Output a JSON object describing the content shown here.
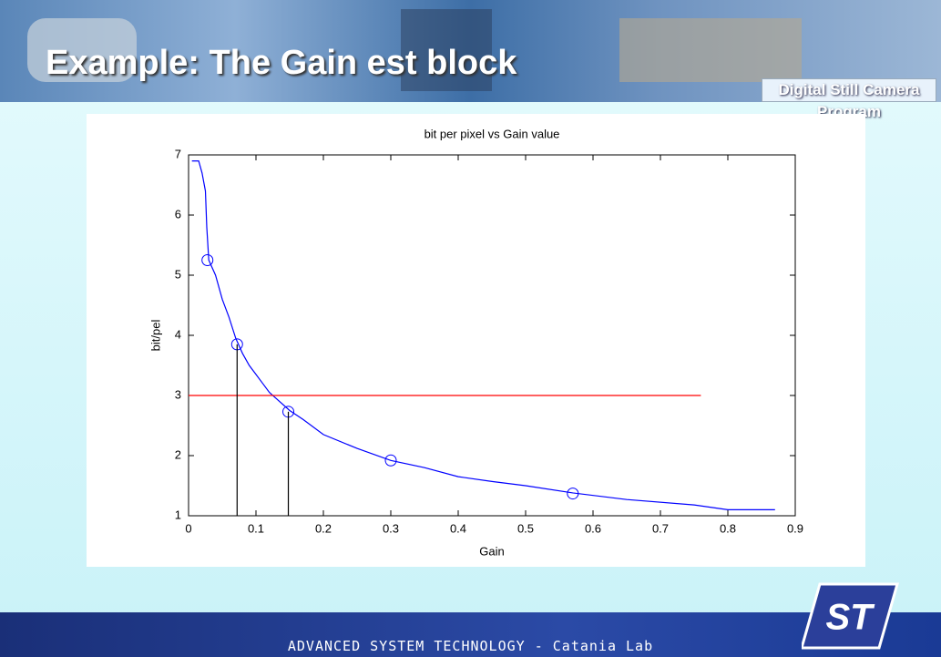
{
  "header": {
    "title": "Example: The Gain est block",
    "program": "Digital Still Camera Program"
  },
  "footer": {
    "text": "ADVANCED SYSTEM TECHNOLOGY - Catania Lab"
  },
  "chart_data": {
    "type": "line",
    "title": "bit per pixel vs Gain value",
    "x_label": "Gain",
    "y_label": "bit/pel",
    "xlim": [
      0,
      0.9
    ],
    "ylim": [
      1,
      7
    ],
    "xticks": [
      0,
      0.1,
      0.2,
      0.3,
      0.4,
      0.5,
      0.6,
      0.7,
      0.8,
      0.9
    ],
    "yticks": [
      1,
      2,
      3,
      4,
      5,
      6,
      7
    ],
    "series": [
      {
        "color": "#0000ff",
        "marker": "none",
        "x": [
          0.005,
          0.015,
          0.02,
          0.025,
          0.027,
          0.03,
          0.04,
          0.05,
          0.06,
          0.07,
          0.08,
          0.09,
          0.1,
          0.11,
          0.12,
          0.13,
          0.15,
          0.17,
          0.2,
          0.25,
          0.3,
          0.35,
          0.4,
          0.45,
          0.5,
          0.57,
          0.65,
          0.75,
          0.8,
          0.87
        ],
        "values": [
          6.9,
          6.9,
          6.7,
          6.4,
          5.8,
          5.25,
          5.0,
          4.6,
          4.3,
          3.95,
          3.7,
          3.5,
          3.35,
          3.2,
          3.05,
          2.95,
          2.75,
          2.6,
          2.35,
          2.12,
          1.92,
          1.8,
          1.65,
          1.57,
          1.5,
          1.38,
          1.27,
          1.18,
          1.1,
          1.1
        ]
      },
      {
        "color": "#0000ff",
        "marker": "circle",
        "x": [
          0.028,
          0.072,
          0.148,
          0.3,
          0.57
        ],
        "values": [
          5.25,
          3.85,
          2.73,
          1.92,
          1.37
        ]
      },
      {
        "color": "#ff0000",
        "marker": "none",
        "x": [
          0,
          0.76
        ],
        "values": [
          3,
          3
        ]
      },
      {
        "color": "#000000",
        "marker": "none",
        "x": [
          0.072,
          0.072
        ],
        "values": [
          1,
          3.85
        ]
      },
      {
        "color": "#000000",
        "marker": "none",
        "x": [
          0.148,
          0.148
        ],
        "values": [
          1,
          2.73
        ]
      }
    ]
  }
}
